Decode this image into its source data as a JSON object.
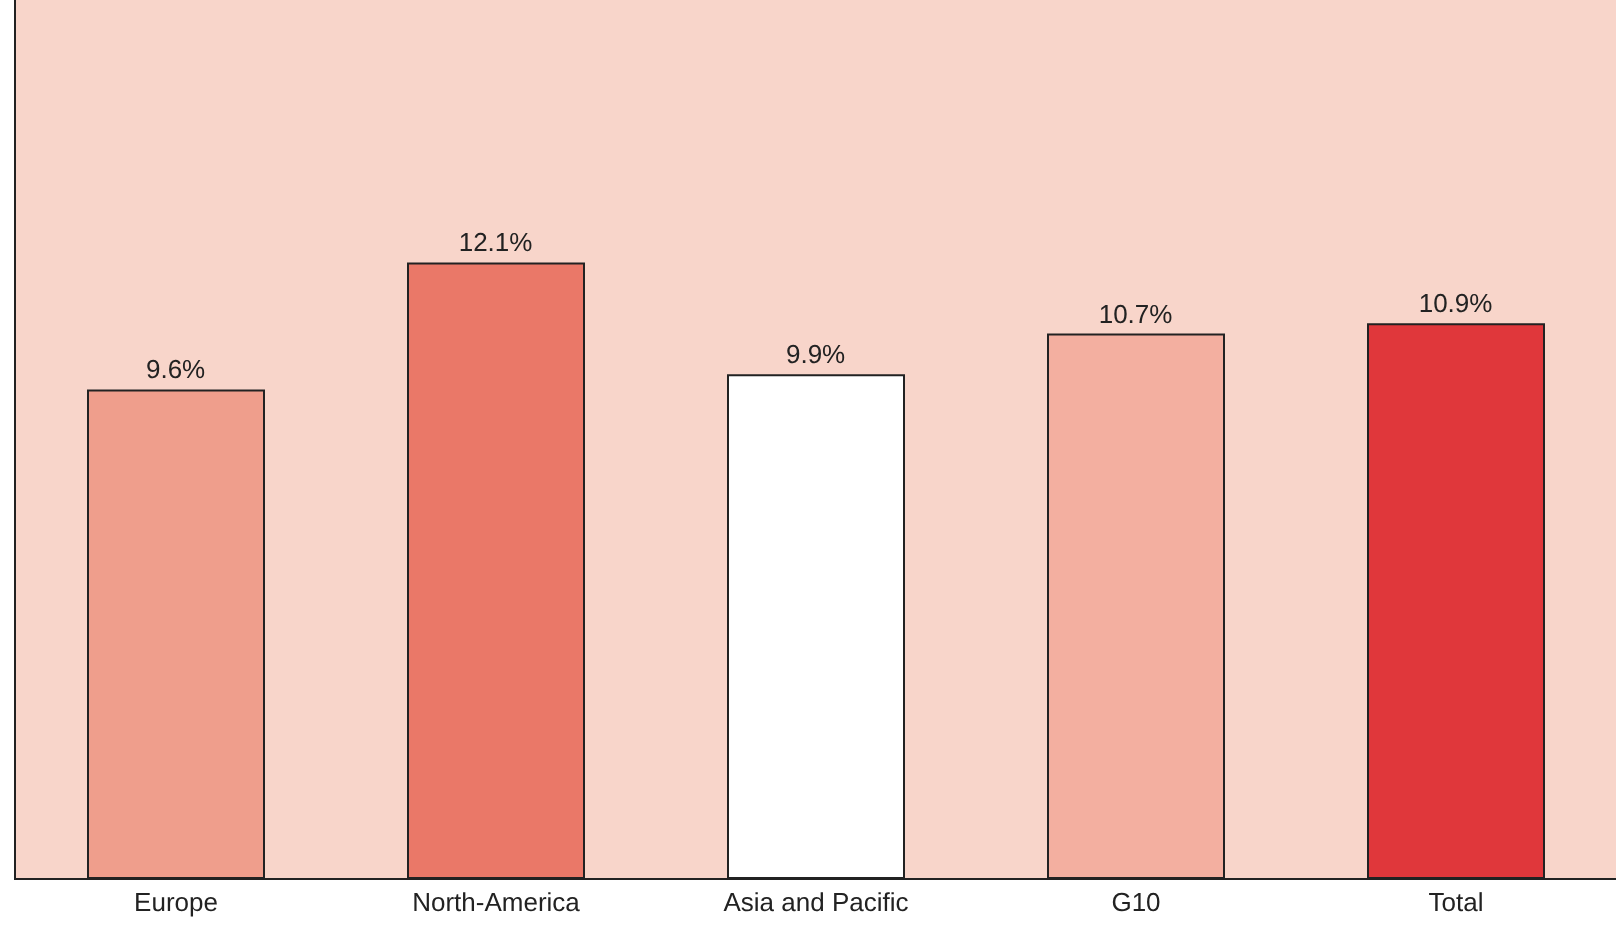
{
  "chart_data": {
    "type": "bar",
    "categories": [
      "Europe",
      "North-America",
      "Asia and Pacific",
      "G10",
      "Total"
    ],
    "values": [
      9.6,
      12.1,
      9.9,
      10.7,
      10.9
    ],
    "value_labels": [
      "9.6%",
      "12.1%",
      "9.9%",
      "10.7%",
      "10.9%"
    ],
    "colors": [
      "#ef9e8c",
      "#ea7868",
      "#ffffff",
      "#f3afa0",
      "#e0373b"
    ],
    "tick_labels": "x",
    "grid": false
  }
}
